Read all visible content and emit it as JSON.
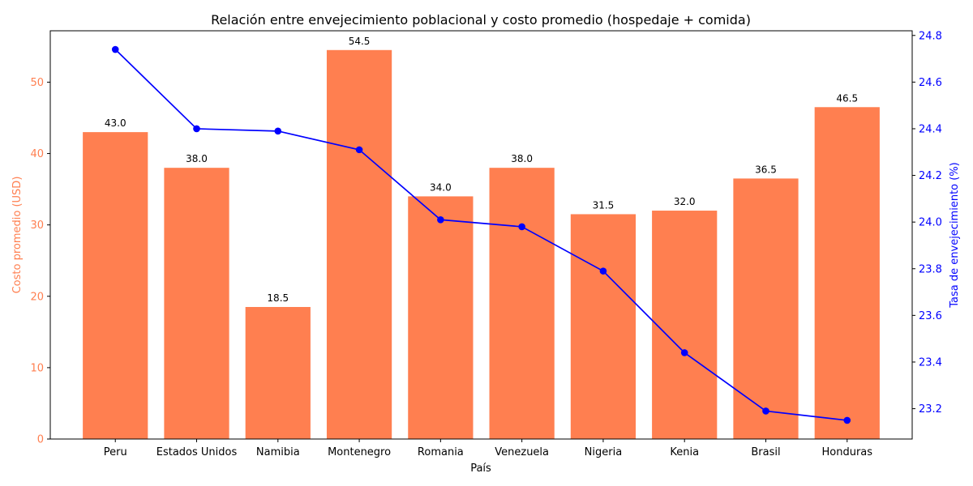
{
  "chart_data": {
    "type": "bar",
    "title": "Relación entre envejecimiento poblacional y costo promedio (hospedaje + comida)",
    "xlabel": "País",
    "categories": [
      "Peru",
      "Estados Unidos",
      "Namibia",
      "Montenegro",
      "Romania",
      "Venezuela",
      "Nigeria",
      "Kenia",
      "Brasil",
      "Honduras"
    ],
    "series": [
      {
        "type": "bar",
        "axis": "left",
        "values": [
          43.0,
          38.0,
          18.5,
          54.5,
          34.0,
          38.0,
          31.5,
          32.0,
          36.5,
          46.5
        ],
        "data_labels": [
          "43.0",
          "38.0",
          "18.5",
          "54.5",
          "34.0",
          "38.0",
          "31.5",
          "32.0",
          "36.5",
          "46.5"
        ],
        "color": "#ff7f50"
      },
      {
        "type": "line",
        "axis": "right",
        "values": [
          24.74,
          24.4,
          24.39,
          24.31,
          24.01,
          23.98,
          23.79,
          23.44,
          23.19,
          23.15
        ],
        "color": "#0000ff",
        "marker": "circle"
      }
    ],
    "y_left": {
      "label": "Costo promedio (USD)",
      "ylim": [
        0,
        57.2
      ],
      "ticks": [
        0,
        10,
        20,
        30,
        40,
        50
      ],
      "tick_labels": [
        "0",
        "10",
        "20",
        "30",
        "40",
        "50"
      ],
      "color": "#ff7f50"
    },
    "y_right": {
      "label": "Tasa de envejecimiento (%)",
      "ylim": [
        23.07,
        24.82
      ],
      "ticks": [
        23.2,
        23.4,
        23.6,
        23.8,
        24.0,
        24.2,
        24.4,
        24.6,
        24.8
      ],
      "tick_labels": [
        "23.2",
        "23.4",
        "23.6",
        "23.8",
        "24.0",
        "24.2",
        "24.4",
        "24.6",
        "24.8"
      ],
      "color": "#0000ff"
    },
    "grid": false,
    "legend": "none"
  }
}
